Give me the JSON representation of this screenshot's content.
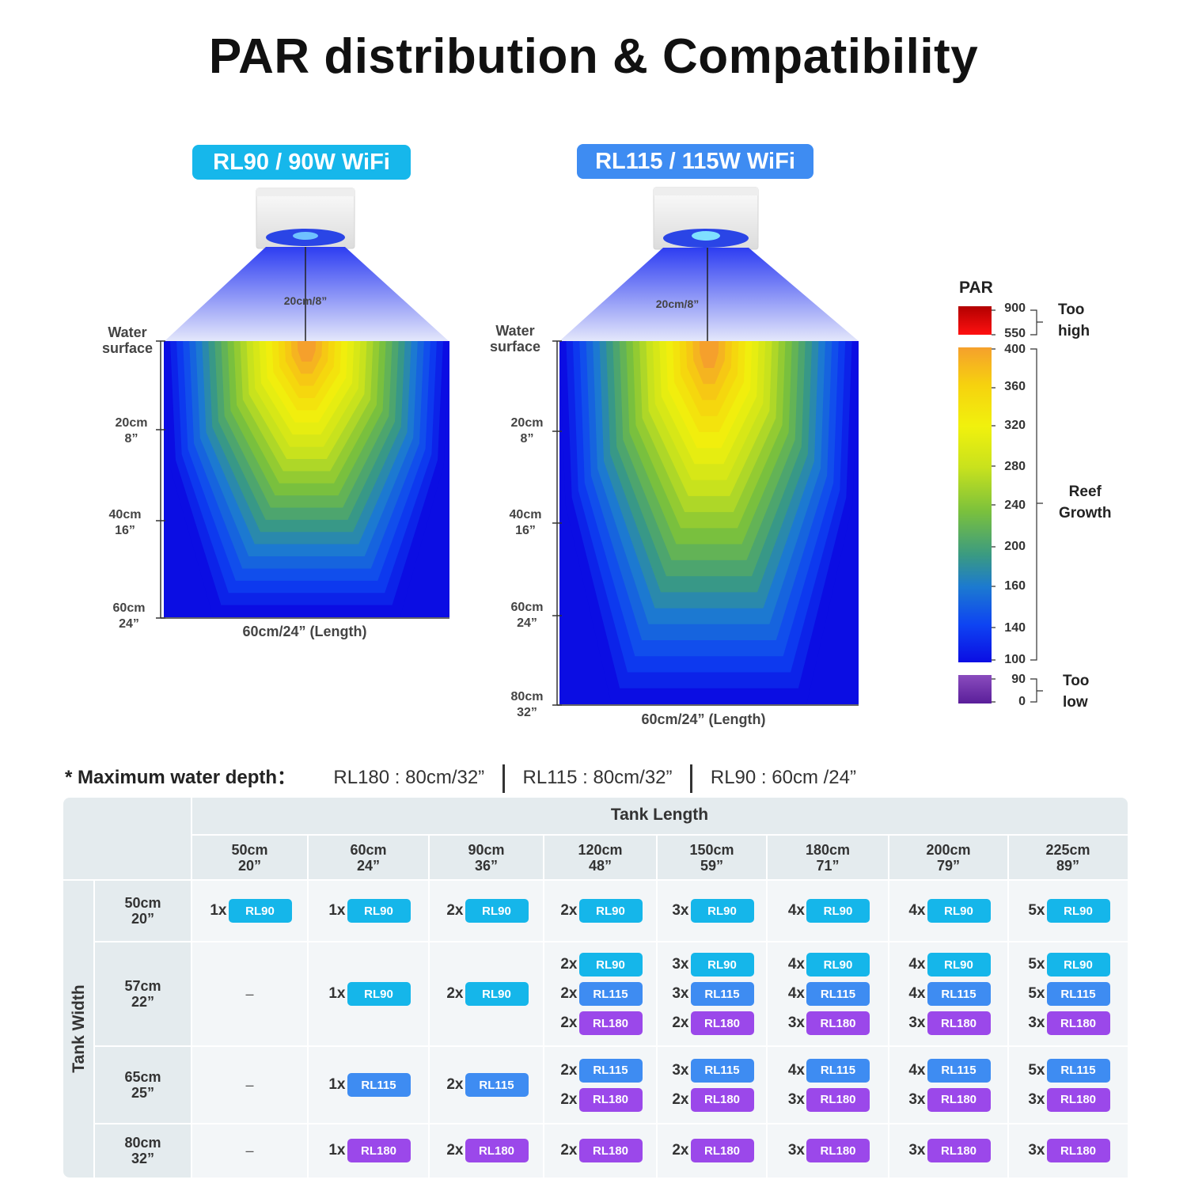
{
  "title": "PAR distribution & Compatibility",
  "left_chart": {
    "label": "RL90 / 90W WiFi",
    "distance_label": "20cm/8”",
    "water_surface": [
      "Water",
      "surface"
    ],
    "depth_ticks": [
      {
        "cm": "20cm",
        "in": "8”"
      },
      {
        "cm": "40cm",
        "in": "16”"
      },
      {
        "cm": "60cm",
        "in": "24”"
      }
    ],
    "length_label": "60cm/24”  (Length)"
  },
  "right_chart": {
    "label": "RL115 / 115W WiFi",
    "distance_label": "20cm/8”",
    "water_surface": [
      "Water",
      "surface"
    ],
    "depth_ticks": [
      {
        "cm": "20cm",
        "in": "8”"
      },
      {
        "cm": "40cm",
        "in": "16”"
      },
      {
        "cm": "60cm",
        "in": "24”"
      },
      {
        "cm": "80cm",
        "in": "32”"
      }
    ],
    "length_label": "60cm/24”  (Length)"
  },
  "legend": {
    "title": "PAR",
    "high_ticks": [
      "900",
      "550"
    ],
    "growth_ticks": [
      "400",
      "360",
      "320",
      "280",
      "240",
      "200",
      "160",
      "140",
      "100"
    ],
    "low_ticks": [
      "90",
      "0"
    ],
    "too_high": [
      "Too",
      "high"
    ],
    "reef_growth": [
      "Reef",
      "Growth"
    ],
    "too_low": [
      "Too",
      "low"
    ]
  },
  "max_depth": {
    "lead": "* Maximum water depth：",
    "items": [
      "RL180 : 80cm/32”",
      "RL115 : 80cm/32”",
      "RL90 : 60cm /24”"
    ]
  },
  "colors": {
    "rl90": "#15b6ea",
    "rl115": "#3e8cf2",
    "rl180": "#9b48ea",
    "title_rl90": "#16b7eb",
    "title_rl115": "#3e8cf2"
  },
  "table": {
    "length_header": "Tank Length",
    "width_header": "Tank Width",
    "columns": [
      [
        "50cm",
        "20”"
      ],
      [
        "60cm",
        "24”"
      ],
      [
        "90cm",
        "36”"
      ],
      [
        "120cm",
        "48”"
      ],
      [
        "150cm",
        "59”"
      ],
      [
        "180cm",
        "71”"
      ],
      [
        "200cm",
        "79”"
      ],
      [
        "225cm",
        "89”"
      ]
    ],
    "rows": [
      {
        "width": [
          "50cm",
          "20”"
        ],
        "cells": [
          [
            [
              "1x",
              "RL90"
            ]
          ],
          [
            [
              "1x",
              "RL90"
            ]
          ],
          [
            [
              "2x",
              "RL90"
            ]
          ],
          [
            [
              "2x",
              "RL90"
            ]
          ],
          [
            [
              "3x",
              "RL90"
            ]
          ],
          [
            [
              "4x",
              "RL90"
            ]
          ],
          [
            [
              "4x",
              "RL90"
            ]
          ],
          [
            [
              "5x",
              "RL90"
            ]
          ]
        ]
      },
      {
        "width": [
          "57cm",
          "22”"
        ],
        "cells": [
          "–",
          [
            [
              "1x",
              "RL90"
            ]
          ],
          [
            [
              "2x",
              "RL90"
            ]
          ],
          [
            [
              "2x",
              "RL90"
            ],
            [
              "2x",
              "RL115"
            ],
            [
              "2x",
              "RL180"
            ]
          ],
          [
            [
              "3x",
              "RL90"
            ],
            [
              "3x",
              "RL115"
            ],
            [
              "2x",
              "RL180"
            ]
          ],
          [
            [
              "4x",
              "RL90"
            ],
            [
              "4x",
              "RL115"
            ],
            [
              "3x",
              "RL180"
            ]
          ],
          [
            [
              "4x",
              "RL90"
            ],
            [
              "4x",
              "RL115"
            ],
            [
              "3x",
              "RL180"
            ]
          ],
          [
            [
              "5x",
              "RL90"
            ],
            [
              "5x",
              "RL115"
            ],
            [
              "3x",
              "RL180"
            ]
          ]
        ]
      },
      {
        "width": [
          "65cm",
          "25”"
        ],
        "cells": [
          "–",
          [
            [
              "1x",
              "RL115"
            ]
          ],
          [
            [
              "2x",
              "RL115"
            ]
          ],
          [
            [
              "2x",
              "RL115"
            ],
            [
              "2x",
              "RL180"
            ]
          ],
          [
            [
              "3x",
              "RL115"
            ],
            [
              "2x",
              "RL180"
            ]
          ],
          [
            [
              "4x",
              "RL115"
            ],
            [
              "3x",
              "RL180"
            ]
          ],
          [
            [
              "4x",
              "RL115"
            ],
            [
              "3x",
              "RL180"
            ]
          ],
          [
            [
              "5x",
              "RL115"
            ],
            [
              "3x",
              "RL180"
            ]
          ]
        ]
      },
      {
        "width": [
          "80cm",
          "32”"
        ],
        "cells": [
          "–",
          [
            [
              "1x",
              "RL180"
            ]
          ],
          [
            [
              "2x",
              "RL180"
            ]
          ],
          [
            [
              "2x",
              "RL180"
            ]
          ],
          [
            [
              "2x",
              "RL180"
            ]
          ],
          [
            [
              "3x",
              "RL180"
            ]
          ],
          [
            [
              "3x",
              "RL180"
            ]
          ],
          [
            [
              "3x",
              "RL180"
            ]
          ]
        ]
      }
    ]
  }
}
